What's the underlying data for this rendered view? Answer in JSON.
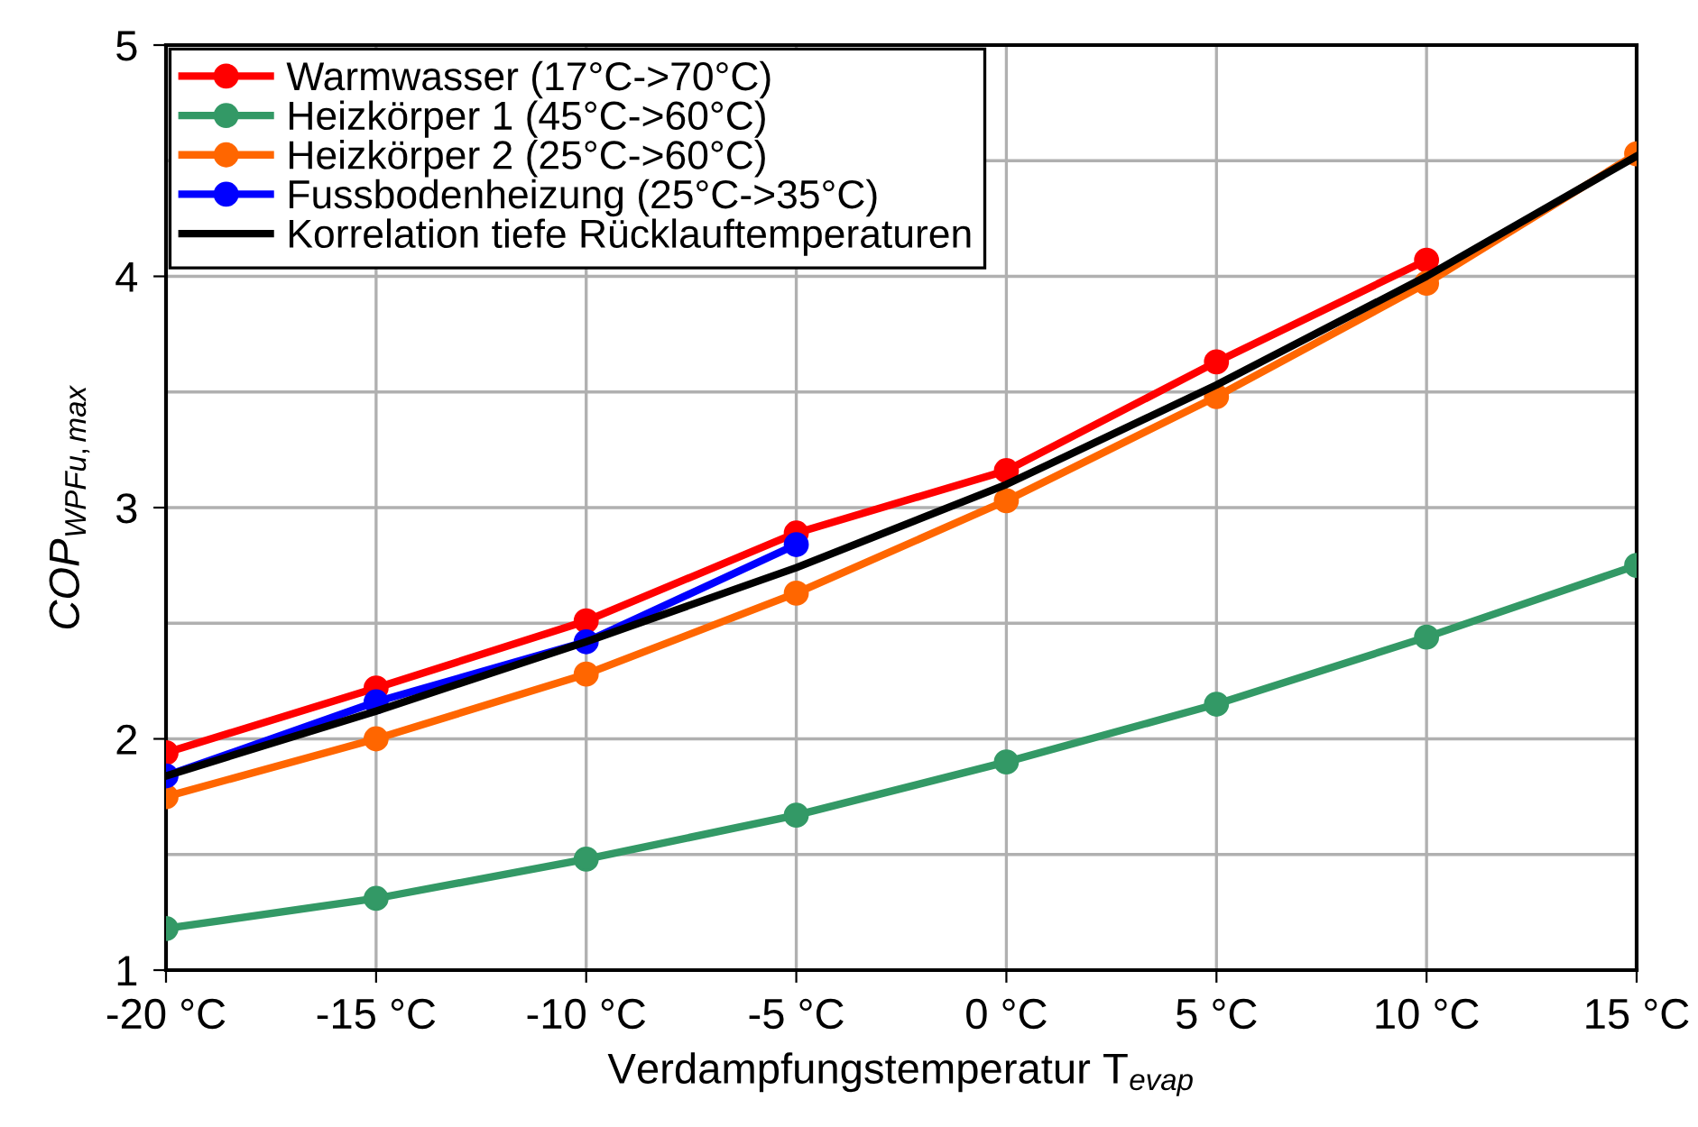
{
  "chart_data": {
    "type": "line",
    "xlabel": "Verdampfungstemperatur T$_{evap}$",
    "ylabel": "COP$_{WPFu,max}$",
    "x": [
      -20,
      -15,
      -10,
      -5,
      0,
      5,
      10,
      15
    ],
    "xlim": [
      -20,
      15
    ],
    "xticks": [
      {
        "value": -20,
        "label": "-20 °C"
      },
      {
        "value": -15,
        "label": "-15 °C"
      },
      {
        "value": -10,
        "label": "-10 °C"
      },
      {
        "value": -5,
        "label": "-5 °C"
      },
      {
        "value": 0,
        "label": "0 °C"
      },
      {
        "value": 5,
        "label": "5 °C"
      },
      {
        "value": 10,
        "label": "10 °C"
      },
      {
        "value": 15,
        "label": "15 °C"
      }
    ],
    "ylim": [
      1,
      5
    ],
    "yticks": [
      1,
      {
        "value": 1.5,
        "label": null
      },
      2,
      {
        "value": 2.5,
        "label": null
      },
      3,
      {
        "value": 3.5,
        "label": null
      },
      4,
      {
        "value": 4.5,
        "label": null
      },
      5
    ],
    "grid": true,
    "legend": "top left",
    "marker": "circle",
    "series": [
      {
        "name": "Warmwasser (17°C->70°C)",
        "color": "#ff0000",
        "values": [
          1.94,
          2.22,
          2.51,
          2.89,
          3.16,
          3.63,
          4.07,
          null
        ]
      },
      {
        "name": "Heizkörper 1 (45°C->60°C)",
        "color": "#339966",
        "values": [
          1.18,
          1.31,
          1.48,
          1.67,
          1.9,
          2.15,
          2.44,
          2.75
        ]
      },
      {
        "name": "Heizkörper 2 (25°C->60°C)",
        "color": "#ff6600",
        "values": [
          1.75,
          2.0,
          2.28,
          2.63,
          3.03,
          3.48,
          3.97,
          4.53
        ]
      },
      {
        "name": "Fussbodenheizung (25°C->35°C)",
        "color": "#0000ff",
        "values": [
          1.84,
          2.16,
          2.42,
          2.84,
          null,
          null,
          null,
          null
        ]
      },
      {
        "name": "Korrelation tiefe Rücklauftemperaturen",
        "color": "#000000",
        "marker": "none",
        "values": [
          1.84,
          2.12,
          2.42,
          2.74,
          3.1,
          3.53,
          4.0,
          4.52
        ]
      }
    ]
  }
}
